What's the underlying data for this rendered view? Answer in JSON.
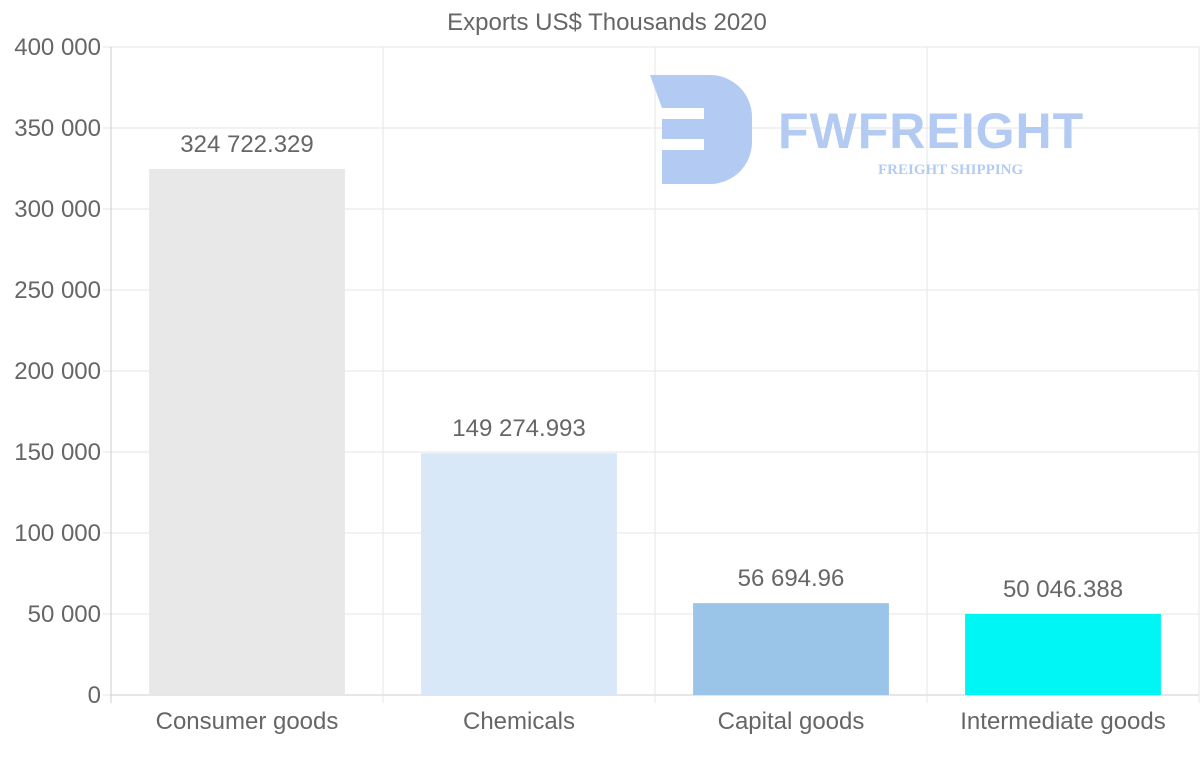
{
  "chart_data": {
    "type": "bar",
    "title": "Exports US$ Thousands 2020",
    "categories": [
      "Consumer goods",
      "Chemicals",
      "Capital goods",
      "Intermediate goods"
    ],
    "values": [
      324722.329,
      149274.993,
      56694.96,
      50046.388
    ],
    "value_labels": [
      "324 722.329",
      "149 274.993",
      "56 694.96",
      "50 046.388"
    ],
    "colors": [
      "#e8e8e8",
      "#d8e8f8",
      "#9ac4e8",
      "#00f5f5"
    ],
    "ylim": [
      0,
      400000
    ],
    "yticks": [
      0,
      50000,
      100000,
      150000,
      200000,
      250000,
      300000,
      350000,
      400000
    ],
    "ytick_labels": [
      "0",
      "50 000",
      "100 000",
      "150 000",
      "200 000",
      "250 000",
      "300 000",
      "350 000",
      "400 000"
    ],
    "grid": true,
    "xlabel": "",
    "ylabel": ""
  },
  "watermark": {
    "name": "FWFREIGHT",
    "tagline": "FREIGHT SHIPPING",
    "icon": "fw-logo-icon",
    "color": "#b3cbf2"
  }
}
